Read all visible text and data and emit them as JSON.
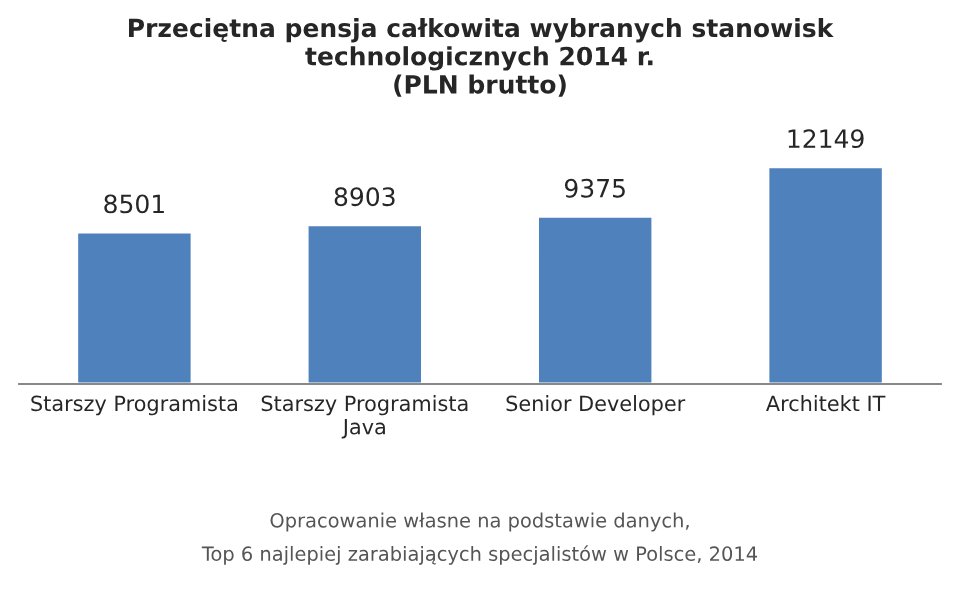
{
  "chart_data": {
    "type": "bar",
    "title": "Przeciętna pensja całkowita wybranych stanowisk\ntechnologicznych 2014 r.\n(PLN brutto)",
    "categories": [
      "Starszy Programista",
      "Starszy Programista Java",
      "Senior Developer",
      "Architekt IT"
    ],
    "values": [
      8501,
      8903,
      9375,
      12149
    ],
    "color": "#4f81bd",
    "data_labels": true,
    "grid": false,
    "legend": false,
    "annotations": [
      "Opracowanie własne na podstawie danych,",
      "Top 6 najlepiej zarabiających specjalistów w Polsce, 2014"
    ]
  }
}
